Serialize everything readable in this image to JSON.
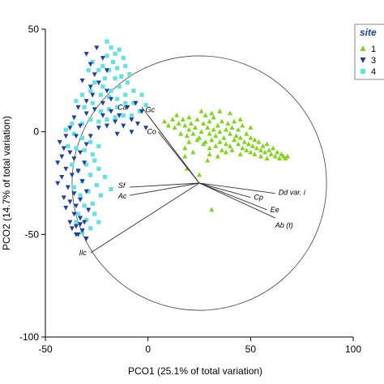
{
  "chart_data": {
    "type": "scatter",
    "title": "",
    "xlabel": "PCO1 (25.1% of total variation)",
    "ylabel": "PCO2 (14.7% of total variation)",
    "xlim": [
      -50,
      100
    ],
    "ylim": [
      -100,
      50
    ],
    "xticks": [
      -50,
      0,
      50,
      100
    ],
    "yticks": [
      -100,
      -50,
      0,
      50
    ],
    "tick_labels_x": [
      "-50",
      "0",
      "50",
      "100"
    ],
    "tick_labels_y": [
      "-100",
      "-50",
      "0",
      "50"
    ],
    "legend": {
      "title": "site",
      "position": "top-right",
      "entries": [
        {
          "label": "1",
          "color": "#80d41c",
          "marker": "triangle-up"
        },
        {
          "label": "3",
          "color": "#1f3fa0",
          "marker": "triangle-down"
        },
        {
          "label": "4",
          "color": "#66e0e0",
          "marker": "square"
        }
      ]
    },
    "circle": {
      "center": [
        25,
        -25
      ],
      "radius": 62
    },
    "vectors": [
      {
        "label": "Ca",
        "end": [
          -3,
          12
        ]
      },
      {
        "label": "Gc",
        "end": [
          0,
          8
        ]
      },
      {
        "label": "Co",
        "end": [
          5,
          0
        ]
      },
      {
        "label": "Sf",
        "end": [
          -9,
          -27
        ]
      },
      {
        "label": "Ac",
        "end": [
          -9,
          -31
        ]
      },
      {
        "label": "Cp",
        "end": [
          50,
          -32
        ]
      },
      {
        "label": "Dd var. i",
        "end": [
          62,
          -30
        ]
      },
      {
        "label": "Ee",
        "end": [
          58,
          -38
        ]
      },
      {
        "label": "Ab (t)",
        "end": [
          62,
          -42
        ]
      },
      {
        "label": "Ilc",
        "end": [
          -28,
          -59
        ]
      }
    ],
    "series": [
      {
        "name": "1",
        "marker": "triangle-up",
        "color": "#80d41c",
        "points": [
          [
            8,
            5
          ],
          [
            10,
            3
          ],
          [
            12,
            6
          ],
          [
            13,
            2
          ],
          [
            14,
            8
          ],
          [
            15,
            4
          ],
          [
            16,
            -1
          ],
          [
            17,
            6
          ],
          [
            18,
            3
          ],
          [
            19,
            -2
          ],
          [
            20,
            1
          ],
          [
            20,
            7
          ],
          [
            21,
            4
          ],
          [
            22,
            -1
          ],
          [
            23,
            2
          ],
          [
            24,
            6
          ],
          [
            25,
            -3
          ],
          [
            26,
            0
          ],
          [
            27,
            4
          ],
          [
            28,
            8
          ],
          [
            28,
            -5
          ],
          [
            29,
            2
          ],
          [
            30,
            -1
          ],
          [
            30,
            5
          ],
          [
            31,
            -4
          ],
          [
            32,
            1
          ],
          [
            32,
            7
          ],
          [
            33,
            -2
          ],
          [
            34,
            3
          ],
          [
            35,
            -5
          ],
          [
            35,
            0
          ],
          [
            36,
            5
          ],
          [
            37,
            -3
          ],
          [
            38,
            1
          ],
          [
            38,
            -6
          ],
          [
            39,
            4
          ],
          [
            40,
            -1
          ],
          [
            40,
            -7
          ],
          [
            41,
            2
          ],
          [
            42,
            -4
          ],
          [
            42,
            5
          ],
          [
            43,
            -2
          ],
          [
            44,
            -6
          ],
          [
            44,
            1
          ],
          [
            45,
            -3
          ],
          [
            46,
            -8
          ],
          [
            46,
            3
          ],
          [
            47,
            -5
          ],
          [
            48,
            -1
          ],
          [
            48,
            -9
          ],
          [
            49,
            -6
          ],
          [
            50,
            -3
          ],
          [
            50,
            -10
          ],
          [
            51,
            -7
          ],
          [
            52,
            -4
          ],
          [
            52,
            -11
          ],
          [
            53,
            -8
          ],
          [
            54,
            -5
          ],
          [
            55,
            -9
          ],
          [
            55,
            -12
          ],
          [
            56,
            -7
          ],
          [
            57,
            -10
          ],
          [
            58,
            -6
          ],
          [
            58,
            -13
          ],
          [
            59,
            -9
          ],
          [
            60,
            -11
          ],
          [
            61,
            -8
          ],
          [
            62,
            -12
          ],
          [
            63,
            -10
          ],
          [
            64,
            -13
          ],
          [
            65,
            -11
          ],
          [
            66,
            -12
          ],
          [
            67,
            -13
          ],
          [
            68,
            -12
          ],
          [
            36,
            -9
          ],
          [
            33,
            -7
          ],
          [
            30,
            -8
          ],
          [
            27,
            -6
          ],
          [
            24,
            -4
          ],
          [
            41,
            -9
          ],
          [
            45,
            -11
          ],
          [
            38,
            -10
          ],
          [
            20,
            -5
          ],
          [
            18,
            -8
          ],
          [
            22,
            -10
          ],
          [
            19,
            -18
          ],
          [
            25,
            -21
          ],
          [
            18,
            -12
          ],
          [
            30,
            -11
          ],
          [
            34,
            -12
          ],
          [
            29,
            -14
          ],
          [
            40,
            9
          ],
          [
            35,
            10
          ],
          [
            45,
            6
          ],
          [
            50,
            2
          ],
          [
            26,
            10
          ],
          [
            31,
            9
          ],
          [
            31,
            -38
          ]
        ]
      },
      {
        "name": "3",
        "marker": "triangle-down",
        "color": "#1f3fa0",
        "points": [
          [
            -30,
            38
          ],
          [
            -28,
            33
          ],
          [
            -25,
            41
          ],
          [
            -22,
            36
          ],
          [
            -20,
            30
          ],
          [
            -26,
            28
          ],
          [
            -32,
            25
          ],
          [
            -28,
            22
          ],
          [
            -24,
            24
          ],
          [
            -20,
            20
          ],
          [
            -18,
            16
          ],
          [
            -22,
            14
          ],
          [
            -27,
            18
          ],
          [
            -30,
            15
          ],
          [
            -34,
            12
          ],
          [
            -30,
            9
          ],
          [
            -26,
            11
          ],
          [
            -22,
            8
          ],
          [
            -18,
            10
          ],
          [
            -14,
            8
          ],
          [
            -10,
            12
          ],
          [
            -8,
            6
          ],
          [
            -12,
            3
          ],
          [
            -16,
            5
          ],
          [
            -36,
            7
          ],
          [
            -33,
            3
          ],
          [
            -38,
            2
          ],
          [
            -35,
            -2
          ],
          [
            -40,
            -2
          ],
          [
            -43,
            -5
          ],
          [
            -41,
            -8
          ],
          [
            -38,
            -10
          ],
          [
            -36,
            -13
          ],
          [
            -42,
            -12
          ],
          [
            -44,
            -15
          ],
          [
            -40,
            -18
          ],
          [
            -37,
            -21
          ],
          [
            -42,
            -22
          ],
          [
            -44,
            -25
          ],
          [
            -39,
            -27
          ],
          [
            -36,
            -30
          ],
          [
            -41,
            -32
          ],
          [
            -38,
            -34
          ],
          [
            -35,
            -36
          ],
          [
            -40,
            -37
          ],
          [
            -36,
            -40
          ],
          [
            -33,
            -42
          ],
          [
            -38,
            -44
          ],
          [
            -35,
            -46
          ],
          [
            -32,
            -48
          ],
          [
            -34,
            -50
          ],
          [
            -31,
            -44
          ],
          [
            -29,
            -38
          ],
          [
            -33,
            -33
          ],
          [
            -30,
            -29
          ],
          [
            -32,
            -24
          ],
          [
            -34,
            -19
          ],
          [
            -31,
            -15
          ],
          [
            -33,
            -10
          ],
          [
            -30,
            -6
          ],
          [
            -28,
            -2
          ],
          [
            -24,
            2
          ],
          [
            -20,
            3
          ],
          [
            -15,
            -1
          ],
          [
            -8,
            0
          ],
          [
            -5,
            4
          ],
          [
            -3,
            10
          ],
          [
            -6,
            14
          ],
          [
            -1,
            2
          ],
          [
            -35,
            -50
          ],
          [
            -33,
            -45
          ],
          [
            -30,
            -52
          ],
          [
            -37,
            -47
          ]
        ]
      },
      {
        "name": "4",
        "marker": "square",
        "color": "#66e0e0",
        "points": [
          [
            -20,
            44
          ],
          [
            -18,
            41
          ],
          [
            -16,
            38
          ],
          [
            -14,
            40
          ],
          [
            -12,
            36
          ],
          [
            -17,
            34
          ],
          [
            -20,
            37
          ],
          [
            -22,
            32
          ],
          [
            -19,
            30
          ],
          [
            -15,
            31
          ],
          [
            -11,
            32
          ],
          [
            -9,
            28
          ],
          [
            -13,
            27
          ],
          [
            -16,
            26
          ],
          [
            -21,
            26
          ],
          [
            -24,
            30
          ],
          [
            -27,
            34
          ],
          [
            -29,
            30
          ],
          [
            -26,
            24
          ],
          [
            -22,
            22
          ],
          [
            -18,
            20
          ],
          [
            -14,
            22
          ],
          [
            -10,
            24
          ],
          [
            -7,
            20
          ],
          [
            -11,
            18
          ],
          [
            -15,
            16
          ],
          [
            -19,
            17
          ],
          [
            -23,
            18
          ],
          [
            -28,
            20
          ],
          [
            -32,
            18
          ],
          [
            -35,
            15
          ],
          [
            -31,
            12
          ],
          [
            -27,
            14
          ],
          [
            -23,
            10
          ],
          [
            -19,
            11
          ],
          [
            -15,
            12
          ],
          [
            -11,
            14
          ],
          [
            -7,
            14
          ],
          [
            -4,
            10
          ],
          [
            -8,
            8
          ],
          [
            -12,
            8
          ],
          [
            -16,
            7
          ],
          [
            -20,
            6
          ],
          [
            -24,
            5
          ],
          [
            -28,
            6
          ],
          [
            -32,
            4
          ],
          [
            -37,
            4
          ],
          [
            -40,
            1
          ],
          [
            -36,
            -1
          ],
          [
            -32,
            -3
          ],
          [
            -28,
            -5
          ],
          [
            -24,
            -7
          ],
          [
            -27,
            -11
          ],
          [
            -31,
            -9
          ],
          [
            -35,
            -8
          ],
          [
            -39,
            -7
          ],
          [
            -37,
            -16
          ],
          [
            -34,
            -19
          ],
          [
            -30,
            -16
          ],
          [
            -26,
            -14
          ],
          [
            -24,
            -18
          ],
          [
            -28,
            -21
          ],
          [
            -32,
            -24
          ],
          [
            -36,
            -27
          ],
          [
            -33,
            -31
          ],
          [
            -29,
            -29
          ],
          [
            -25,
            -26
          ],
          [
            -23,
            -31
          ],
          [
            -27,
            -35
          ],
          [
            -31,
            -36
          ],
          [
            -34,
            -40
          ],
          [
            -30,
            -43
          ],
          [
            -26,
            -40
          ],
          [
            -24,
            -44
          ],
          [
            -28,
            -47
          ],
          [
            -32,
            -49
          ],
          [
            -35,
            -44
          ],
          [
            -18,
            -28
          ],
          [
            -21,
            -22
          ],
          [
            -3,
            18
          ],
          [
            -1,
            13
          ]
        ]
      }
    ]
  }
}
